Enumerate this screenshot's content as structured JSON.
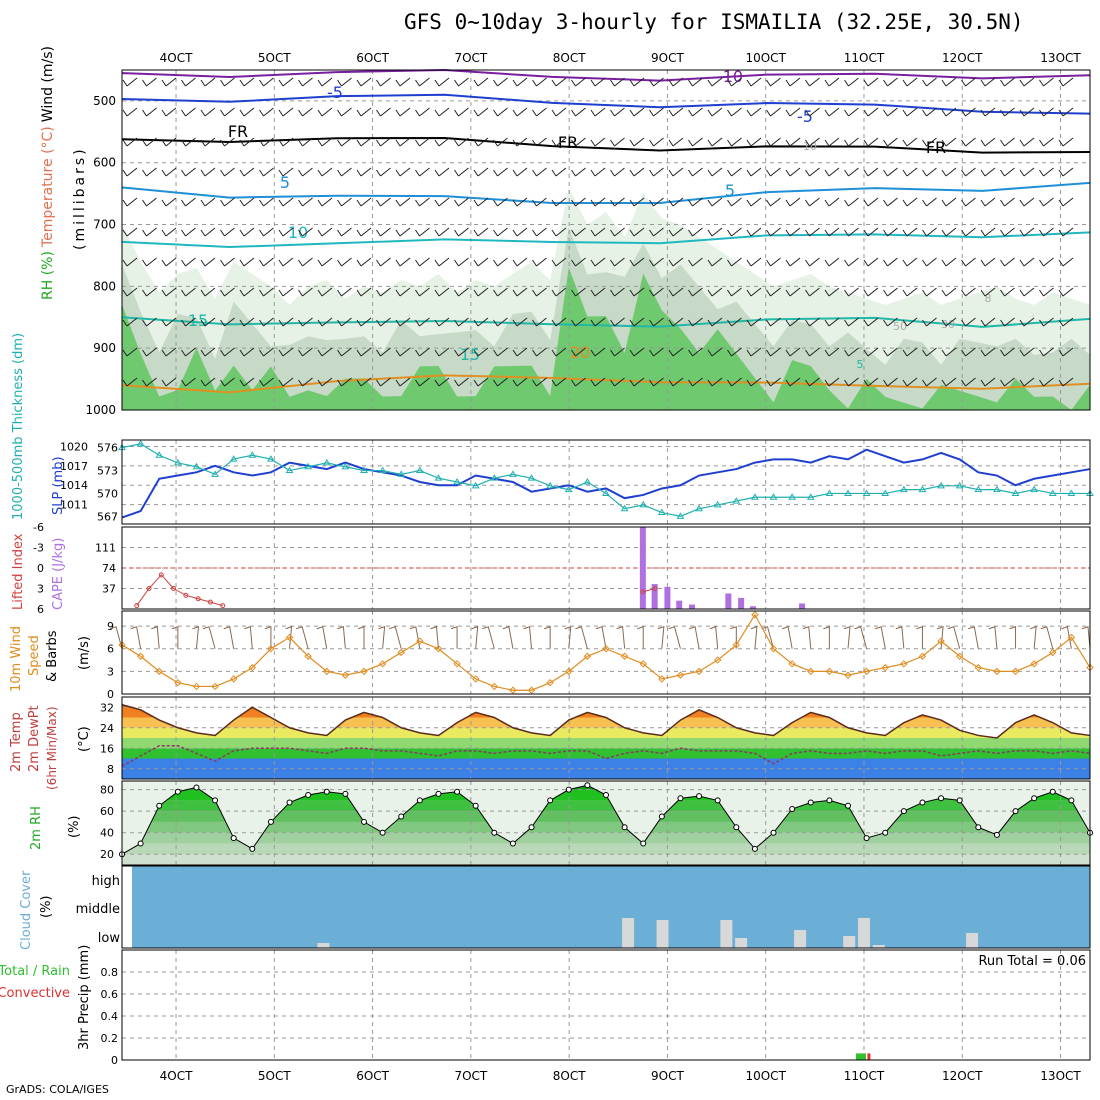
{
  "title": "GFS 0~10day 3-hourly for ISMAILIA (32.25E, 30.5N)",
  "footer": "GrADS: COLA/IGES",
  "colors": {
    "rh_light": "#e6f2e6",
    "rh_mid": "#c7d9c7",
    "rh_grey": "#9bb19b",
    "rh_green": "#5fc65f",
    "rh_bright": "#18d818",
    "temp_m10": "#7a1ea0",
    "temp_m5": "#1f3fd0",
    "temp_fr": "#000000",
    "temp_5": "#1e90d8",
    "temp_10": "#20b8c0",
    "temp_15": "#20b8a8",
    "temp_20": "#e09020",
    "slp": "#1f3fd0",
    "thickness": "#20b0b0",
    "cape": "#b070e0",
    "li": "#d04040",
    "wind": "#e08c1e",
    "cloud": "#6baed6",
    "cloud_low": "#d8d8d8",
    "precip_total": "#30c030",
    "precip_conv": "#e03030"
  },
  "chart_data": [
    {
      "id": "upper-air",
      "type": "contour",
      "ylabel_parts": [
        "RH (%)",
        "Temperature (°C)",
        "Wind (m/s)"
      ],
      "ylabel_units": "(millibars)",
      "x_ticks": [
        "4OCT",
        "5OCT",
        "6OCT",
        "7OCT",
        "8OCT",
        "9OCT",
        "10OCT",
        "11OCT",
        "12OCT",
        "13OCT"
      ],
      "y_ticks": [
        500,
        600,
        700,
        800,
        900,
        1000
      ],
      "ylim": [
        450,
        1000
      ],
      "contour_labels": [
        "-10",
        "-5",
        "-5",
        "FR",
        "FR",
        "FR",
        "5",
        "5",
        "10",
        "15",
        "15",
        "20",
        "5",
        "10",
        "50",
        "30",
        "8"
      ],
      "isotherms": [
        {
          "name": "-10",
          "values": [
            455,
            455,
            455,
            456,
            458,
            462,
            462,
            460,
            458,
            456
          ]
        },
        {
          "name": "-5",
          "values": [
            497,
            495,
            494,
            496,
            500,
            505,
            508,
            510,
            512,
            518
          ]
        },
        {
          "name": "FR",
          "values": [
            562,
            560,
            562,
            566,
            570,
            575,
            578,
            578,
            578,
            580
          ]
        },
        {
          "name": "5",
          "values": [
            640,
            650,
            655,
            660,
            662,
            660,
            652,
            645,
            640,
            630
          ]
        },
        {
          "name": "10",
          "values": [
            728,
            730,
            732,
            730,
            725,
            725,
            722,
            720,
            715,
            710
          ]
        },
        {
          "name": "15",
          "values": [
            850,
            855,
            860,
            862,
            858,
            860,
            858,
            855,
            860,
            850
          ]
        },
        {
          "name": "20",
          "values": [
            960,
            965,
            955,
            950,
            945,
            950,
            960,
            965,
            960,
            955
          ]
        }
      ]
    },
    {
      "id": "slp-thickness",
      "type": "line",
      "ylabel_left": "1000-500mb Thickness (dm)",
      "ylabel_right": "SLP (mb)",
      "thickness_ticks": [
        567,
        570,
        573,
        576
      ],
      "slp_ticks": [
        1011,
        1014,
        1017,
        1020
      ],
      "thickness_range": [
        566,
        577
      ],
      "slp_range": [
        1008,
        1021
      ],
      "series": [
        {
          "name": "SLP",
          "values": [
            1009,
            1010,
            1015,
            1015.5,
            1016,
            1017,
            1016,
            1015.5,
            1016,
            1017.5,
            1017,
            1016.5,
            1017.5,
            1016.5,
            1016,
            1015.5,
            1014.5,
            1014,
            1014,
            1015.5,
            1015,
            1014.5,
            1013,
            1013.5,
            1014,
            1013,
            1013.5,
            1012,
            1012.5,
            1013.5,
            1014,
            1015.5,
            1016,
            1016.5,
            1017.5,
            1018,
            1018,
            1017.5,
            1018.5,
            1018,
            1019.5,
            1018.5,
            1017.5,
            1018,
            1019,
            1018,
            1016,
            1015.5,
            1014,
            1015,
            1015.5,
            1016,
            1016.5
          ]
        },
        {
          "name": "Thickness",
          "values": [
            576,
            576.5,
            575,
            574,
            573.5,
            572.5,
            574.5,
            575,
            574.5,
            573,
            573.5,
            574,
            573.5,
            573,
            573,
            572.5,
            573,
            572,
            571.5,
            571,
            572,
            572.5,
            572,
            571,
            570.5,
            571.5,
            570,
            568,
            568.5,
            567.5,
            567,
            568,
            568.5,
            569,
            569.5,
            569.5,
            569.5,
            569.5,
            570,
            570,
            570,
            570,
            570.5,
            570.5,
            571,
            571,
            570.5,
            570.5,
            570,
            570.5,
            570,
            570,
            570
          ]
        }
      ]
    },
    {
      "id": "cape-li",
      "type": "bar",
      "ylabel_left": "Lifted Index",
      "ylabel_right": "CAPE (J/kg)",
      "li_ticks": [
        -6,
        -3,
        0,
        3,
        6
      ],
      "cape_ticks": [
        37,
        74,
        111
      ],
      "li_range": [
        -6,
        6
      ],
      "cape_range": [
        0,
        148
      ],
      "cape_bars": [
        {
          "x": 8.75,
          "value": 148
        },
        {
          "x": 8.87,
          "value": 45
        },
        {
          "x": 9.0,
          "value": 40
        },
        {
          "x": 9.12,
          "value": 15
        },
        {
          "x": 9.25,
          "value": 8
        },
        {
          "x": 9.62,
          "value": 28
        },
        {
          "x": 9.75,
          "value": 20
        },
        {
          "x": 9.87,
          "value": 5
        },
        {
          "x": 10.37,
          "value": 10
        }
      ],
      "lifted_index": [
        {
          "x": 3.6,
          "values": [
            5.5,
            3,
            1,
            3,
            4,
            4.5,
            5,
            5.5
          ]
        },
        {
          "x": 8.75,
          "values": [
            3.5,
            3
          ]
        }
      ]
    },
    {
      "id": "wind",
      "type": "line",
      "ylabel_parts": [
        "10m Wind",
        "Speed",
        "& Barbs",
        "(m/s)"
      ],
      "y_ticks": [
        0,
        3,
        6,
        9
      ],
      "ylim": [
        0,
        11
      ],
      "series": [
        {
          "name": "Wind speed",
          "values": [
            6.5,
            5,
            3,
            1.5,
            1,
            1,
            2,
            3.5,
            6,
            7.5,
            5,
            3,
            2.5,
            3,
            4,
            5.5,
            7,
            6,
            4,
            2,
            1,
            0.5,
            0.5,
            1.5,
            3,
            5,
            6,
            5,
            4,
            2,
            2.5,
            3,
            4.5,
            6.5,
            10.5,
            6,
            4,
            3,
            3,
            2.5,
            3,
            3.5,
            4,
            5,
            7,
            5,
            3.5,
            3,
            3,
            4,
            5.5,
            7.5,
            3.5
          ]
        }
      ]
    },
    {
      "id": "temperature",
      "type": "area",
      "ylabel_parts": [
        "2m Temp",
        "2m DewPt",
        "(6hr Min/Max)",
        "(°C)"
      ],
      "y_ticks": [
        8,
        16,
        24,
        32
      ],
      "ylim": [
        4,
        36
      ],
      "series": [
        {
          "name": "2m Temp",
          "values": [
            33,
            31,
            27,
            24,
            22,
            21,
            27,
            32,
            28,
            24,
            22,
            21,
            27,
            30,
            28,
            24,
            22,
            21,
            26,
            30,
            28,
            24,
            22,
            21,
            27,
            30,
            28,
            24,
            22,
            21,
            27,
            31,
            28,
            24,
            22,
            21,
            26,
            30,
            28,
            24,
            22,
            21,
            26,
            29,
            27,
            23,
            21,
            20,
            26,
            29,
            26,
            22,
            21
          ]
        },
        {
          "name": "2m DewPt",
          "values": [
            9,
            13,
            17,
            17,
            14,
            11,
            15,
            16,
            16,
            16,
            15,
            14,
            16,
            16,
            15,
            15,
            14,
            13,
            15,
            15,
            14,
            15,
            15,
            14,
            15,
            15,
            12,
            14,
            15,
            14,
            16,
            15,
            15,
            15,
            14,
            10,
            14,
            15,
            14,
            14,
            15,
            14,
            15,
            15,
            13,
            14,
            15,
            14,
            15,
            15,
            14,
            15,
            14
          ]
        }
      ]
    },
    {
      "id": "rh2m",
      "type": "area",
      "ylabel_parts": [
        "2m RH",
        "(%)"
      ],
      "y_ticks": [
        20,
        40,
        60,
        80
      ],
      "ylim": [
        10,
        88
      ],
      "series": [
        {
          "name": "2m RH",
          "values": [
            20,
            30,
            65,
            78,
            82,
            70,
            35,
            25,
            50,
            68,
            75,
            78,
            76,
            50,
            40,
            55,
            70,
            76,
            78,
            65,
            40,
            30,
            45,
            70,
            80,
            84,
            75,
            45,
            30,
            55,
            72,
            74,
            70,
            45,
            25,
            40,
            62,
            68,
            70,
            65,
            35,
            40,
            60,
            68,
            72,
            70,
            45,
            38,
            60,
            72,
            78,
            70,
            40
          ]
        }
      ]
    },
    {
      "id": "cloud-cover",
      "type": "bar",
      "ylabel_parts": [
        "Cloud Cover",
        "(%)"
      ],
      "y_ticks": [
        "high",
        "middle",
        "low"
      ],
      "low_cloud_bars": [
        {
          "x": 5.5,
          "value": 5
        },
        {
          "x": 8.6,
          "value": 30
        },
        {
          "x": 8.95,
          "value": 28
        },
        {
          "x": 9.6,
          "value": 28
        },
        {
          "x": 9.75,
          "value": 10
        },
        {
          "x": 10.35,
          "value": 18
        },
        {
          "x": 10.85,
          "value": 12
        },
        {
          "x": 11.0,
          "value": 30
        },
        {
          "x": 11.15,
          "value": 3
        },
        {
          "x": 12.1,
          "value": 15
        }
      ]
    },
    {
      "id": "precip",
      "type": "bar",
      "ylabel_left_parts": [
        "Total / Rain",
        "Convective"
      ],
      "ylabel_right": "3hr Precip (mm)",
      "y_ticks": [
        0,
        0.2,
        0.4,
        0.6,
        0.8
      ],
      "ylim": [
        0,
        1.0
      ],
      "run_total_label": "Run Total = 0.06",
      "bars": [
        {
          "x": 10.97,
          "value": 0.06,
          "series": "Total / Rain"
        },
        {
          "x": 11.05,
          "value": 0.06,
          "series": "Convective"
        }
      ]
    }
  ]
}
